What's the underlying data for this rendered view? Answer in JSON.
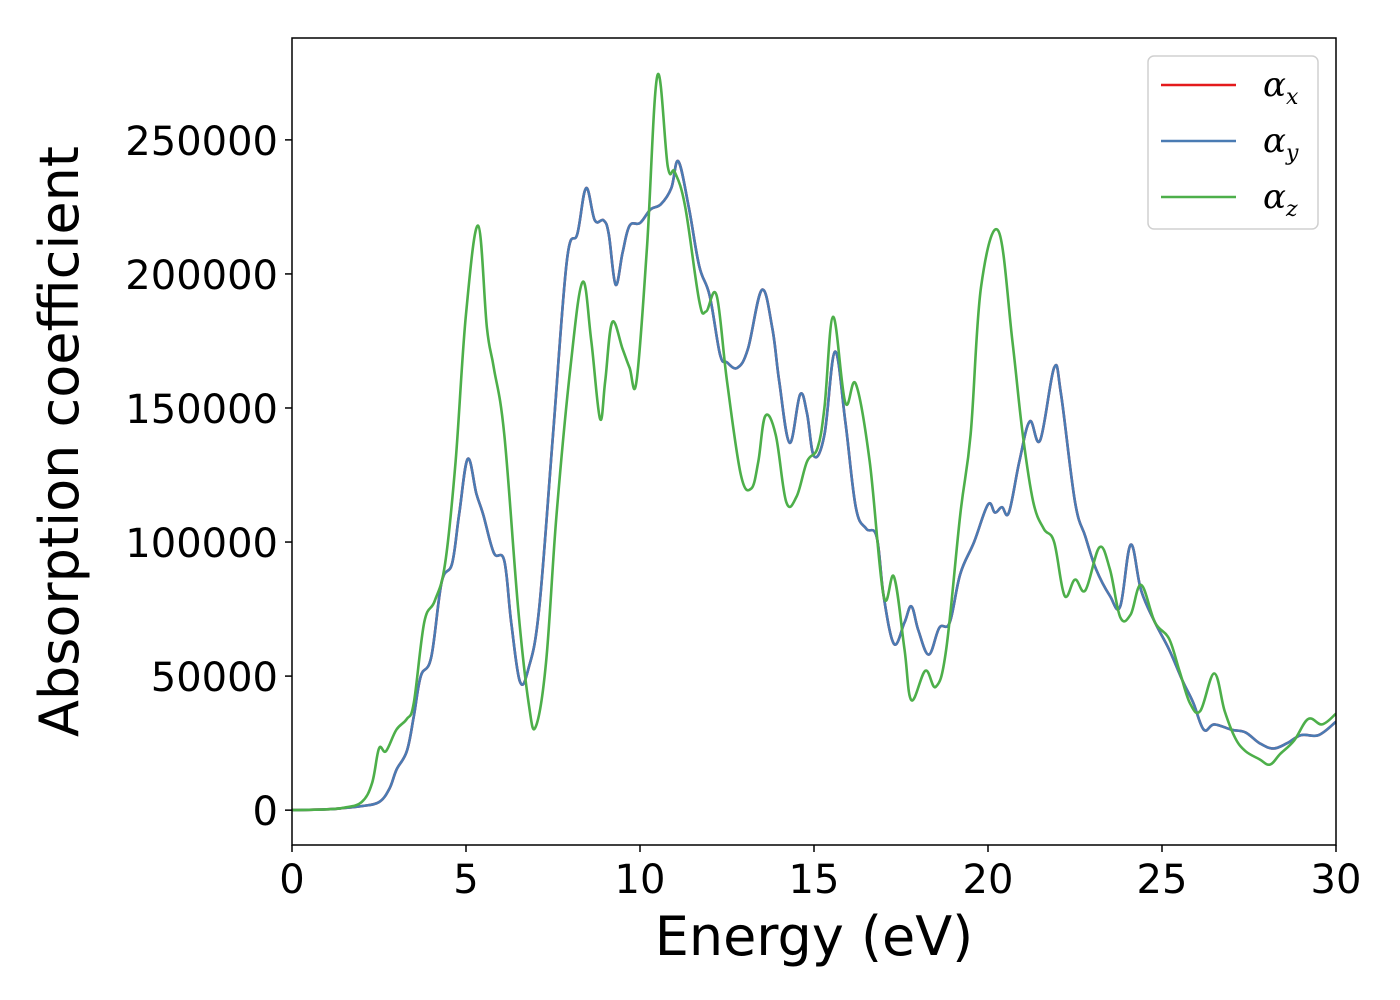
{
  "chart_data": {
    "type": "line",
    "xlabel": "Energy (eV)",
    "ylabel": "Absorption coefficient",
    "xlim": [
      0,
      30
    ],
    "ylim": [
      -13000,
      288000
    ],
    "xticks": [
      0,
      5,
      10,
      15,
      20,
      25,
      30
    ],
    "yticks": [
      0,
      50000,
      100000,
      150000,
      200000,
      250000
    ],
    "grid": false,
    "legend": "top-right",
    "series": [
      {
        "name": "α_x",
        "legend_base": "α",
        "legend_sub": "x",
        "color": "#e41a1c",
        "points": [
          [
            0,
            0
          ],
          [
            1.0,
            300
          ],
          [
            1.5,
            800
          ],
          [
            2.0,
            1500
          ],
          [
            2.5,
            3000
          ],
          [
            2.8,
            8000
          ],
          [
            3.0,
            15000
          ],
          [
            3.3,
            22000
          ],
          [
            3.5,
            35000
          ],
          [
            3.7,
            50000
          ],
          [
            4.0,
            57000
          ],
          [
            4.3,
            85000
          ],
          [
            4.6,
            92000
          ],
          [
            4.8,
            110000
          ],
          [
            5.05,
            131000
          ],
          [
            5.3,
            118000
          ],
          [
            5.5,
            110000
          ],
          [
            5.8,
            96000
          ],
          [
            6.1,
            93000
          ],
          [
            6.3,
            70000
          ],
          [
            6.55,
            48000
          ],
          [
            6.8,
            53000
          ],
          [
            7.1,
            75000
          ],
          [
            7.5,
            140000
          ],
          [
            7.9,
            205000
          ],
          [
            8.2,
            215000
          ],
          [
            8.45,
            232000
          ],
          [
            8.7,
            220000
          ],
          [
            8.95,
            220000
          ],
          [
            9.1,
            215000
          ],
          [
            9.3,
            196000
          ],
          [
            9.5,
            208000
          ],
          [
            9.7,
            218000
          ],
          [
            10.0,
            219000
          ],
          [
            10.3,
            224000
          ],
          [
            10.6,
            226000
          ],
          [
            10.9,
            232000
          ],
          [
            11.1,
            242000
          ],
          [
            11.4,
            225000
          ],
          [
            11.7,
            203000
          ],
          [
            12.0,
            192000
          ],
          [
            12.3,
            170000
          ],
          [
            12.5,
            167000
          ],
          [
            12.8,
            165000
          ],
          [
            13.1,
            172000
          ],
          [
            13.5,
            194000
          ],
          [
            13.8,
            180000
          ],
          [
            14.0,
            160000
          ],
          [
            14.3,
            137000
          ],
          [
            14.6,
            155000
          ],
          [
            14.8,
            148000
          ],
          [
            15.0,
            132000
          ],
          [
            15.3,
            140000
          ],
          [
            15.6,
            171000
          ],
          [
            15.9,
            145000
          ],
          [
            16.2,
            113000
          ],
          [
            16.5,
            105000
          ],
          [
            16.8,
            102000
          ],
          [
            17.0,
            80000
          ],
          [
            17.3,
            62000
          ],
          [
            17.6,
            70000
          ],
          [
            17.8,
            76000
          ],
          [
            18.0,
            67000
          ],
          [
            18.3,
            58000
          ],
          [
            18.6,
            68000
          ],
          [
            18.9,
            70000
          ],
          [
            19.2,
            88000
          ],
          [
            19.6,
            100000
          ],
          [
            20.0,
            114000
          ],
          [
            20.2,
            111000
          ],
          [
            20.4,
            113000
          ],
          [
            20.6,
            111000
          ],
          [
            20.9,
            130000
          ],
          [
            21.2,
            145000
          ],
          [
            21.5,
            138000
          ],
          [
            21.9,
            165000
          ],
          [
            22.1,
            155000
          ],
          [
            22.5,
            115000
          ],
          [
            22.8,
            102000
          ],
          [
            23.1,
            90000
          ],
          [
            23.5,
            80000
          ],
          [
            23.8,
            76000
          ],
          [
            24.1,
            99000
          ],
          [
            24.4,
            82000
          ],
          [
            24.8,
            70000
          ],
          [
            25.2,
            60000
          ],
          [
            25.6,
            48000
          ],
          [
            25.9,
            40000
          ],
          [
            26.2,
            30000
          ],
          [
            26.5,
            32000
          ],
          [
            27.0,
            30000
          ],
          [
            27.4,
            29000
          ],
          [
            27.8,
            25000
          ],
          [
            28.2,
            23000
          ],
          [
            28.6,
            25000
          ],
          [
            29.0,
            28000
          ],
          [
            29.5,
            28000
          ],
          [
            30,
            33000
          ]
        ]
      },
      {
        "name": "α_y",
        "legend_base": "α",
        "legend_sub": "y",
        "color": "#4a7bb3",
        "points": [
          [
            0,
            0
          ],
          [
            1.0,
            300
          ],
          [
            1.5,
            800
          ],
          [
            2.0,
            1500
          ],
          [
            2.5,
            3000
          ],
          [
            2.8,
            8000
          ],
          [
            3.0,
            15000
          ],
          [
            3.3,
            22000
          ],
          [
            3.5,
            35000
          ],
          [
            3.7,
            50000
          ],
          [
            4.0,
            57000
          ],
          [
            4.3,
            85000
          ],
          [
            4.6,
            92000
          ],
          [
            4.8,
            110000
          ],
          [
            5.05,
            131000
          ],
          [
            5.3,
            118000
          ],
          [
            5.5,
            110000
          ],
          [
            5.8,
            96000
          ],
          [
            6.1,
            93000
          ],
          [
            6.3,
            70000
          ],
          [
            6.55,
            48000
          ],
          [
            6.8,
            53000
          ],
          [
            7.1,
            75000
          ],
          [
            7.5,
            140000
          ],
          [
            7.9,
            205000
          ],
          [
            8.2,
            215000
          ],
          [
            8.45,
            232000
          ],
          [
            8.7,
            220000
          ],
          [
            8.95,
            220000
          ],
          [
            9.1,
            215000
          ],
          [
            9.3,
            196000
          ],
          [
            9.5,
            208000
          ],
          [
            9.7,
            218000
          ],
          [
            10.0,
            219000
          ],
          [
            10.3,
            224000
          ],
          [
            10.6,
            226000
          ],
          [
            10.9,
            232000
          ],
          [
            11.1,
            242000
          ],
          [
            11.4,
            225000
          ],
          [
            11.7,
            203000
          ],
          [
            12.0,
            192000
          ],
          [
            12.3,
            170000
          ],
          [
            12.5,
            167000
          ],
          [
            12.8,
            165000
          ],
          [
            13.1,
            172000
          ],
          [
            13.5,
            194000
          ],
          [
            13.8,
            180000
          ],
          [
            14.0,
            160000
          ],
          [
            14.3,
            137000
          ],
          [
            14.6,
            155000
          ],
          [
            14.8,
            148000
          ],
          [
            15.0,
            132000
          ],
          [
            15.3,
            140000
          ],
          [
            15.6,
            171000
          ],
          [
            15.9,
            145000
          ],
          [
            16.2,
            113000
          ],
          [
            16.5,
            105000
          ],
          [
            16.8,
            102000
          ],
          [
            17.0,
            80000
          ],
          [
            17.3,
            62000
          ],
          [
            17.6,
            70000
          ],
          [
            17.8,
            76000
          ],
          [
            18.0,
            67000
          ],
          [
            18.3,
            58000
          ],
          [
            18.6,
            68000
          ],
          [
            18.9,
            70000
          ],
          [
            19.2,
            88000
          ],
          [
            19.6,
            100000
          ],
          [
            20.0,
            114000
          ],
          [
            20.2,
            111000
          ],
          [
            20.4,
            113000
          ],
          [
            20.6,
            111000
          ],
          [
            20.9,
            130000
          ],
          [
            21.2,
            145000
          ],
          [
            21.5,
            138000
          ],
          [
            21.9,
            165000
          ],
          [
            22.1,
            155000
          ],
          [
            22.5,
            115000
          ],
          [
            22.8,
            102000
          ],
          [
            23.1,
            90000
          ],
          [
            23.5,
            80000
          ],
          [
            23.8,
            76000
          ],
          [
            24.1,
            99000
          ],
          [
            24.4,
            82000
          ],
          [
            24.8,
            70000
          ],
          [
            25.2,
            60000
          ],
          [
            25.6,
            48000
          ],
          [
            25.9,
            40000
          ],
          [
            26.2,
            30000
          ],
          [
            26.5,
            32000
          ],
          [
            27.0,
            30000
          ],
          [
            27.4,
            29000
          ],
          [
            27.8,
            25000
          ],
          [
            28.2,
            23000
          ],
          [
            28.6,
            25000
          ],
          [
            29.0,
            28000
          ],
          [
            29.5,
            28000
          ],
          [
            30,
            33000
          ]
        ]
      },
      {
        "name": "α_z",
        "legend_base": "α",
        "legend_sub": "z",
        "color": "#4daf4a",
        "points": [
          [
            0,
            0
          ],
          [
            1.0,
            300
          ],
          [
            1.5,
            900
          ],
          [
            2.0,
            3000
          ],
          [
            2.3,
            10000
          ],
          [
            2.5,
            23000
          ],
          [
            2.7,
            22000
          ],
          [
            3.0,
            30000
          ],
          [
            3.3,
            34000
          ],
          [
            3.5,
            40000
          ],
          [
            3.8,
            70000
          ],
          [
            4.1,
            78000
          ],
          [
            4.4,
            92000
          ],
          [
            4.7,
            130000
          ],
          [
            5.0,
            185000
          ],
          [
            5.35,
            218000
          ],
          [
            5.6,
            180000
          ],
          [
            5.8,
            165000
          ],
          [
            6.1,
            140000
          ],
          [
            6.5,
            75000
          ],
          [
            6.8,
            40000
          ],
          [
            7.0,
            31000
          ],
          [
            7.3,
            55000
          ],
          [
            7.6,
            110000
          ],
          [
            8.0,
            165000
          ],
          [
            8.35,
            197000
          ],
          [
            8.6,
            175000
          ],
          [
            8.85,
            146000
          ],
          [
            9.0,
            160000
          ],
          [
            9.2,
            182000
          ],
          [
            9.5,
            172000
          ],
          [
            9.7,
            165000
          ],
          [
            9.9,
            160000
          ],
          [
            10.2,
            210000
          ],
          [
            10.5,
            274000
          ],
          [
            10.8,
            240000
          ],
          [
            11.0,
            238000
          ],
          [
            11.3,
            225000
          ],
          [
            11.7,
            190000
          ],
          [
            11.9,
            186000
          ],
          [
            12.2,
            192000
          ],
          [
            12.5,
            160000
          ],
          [
            12.9,
            125000
          ],
          [
            13.2,
            120000
          ],
          [
            13.4,
            130000
          ],
          [
            13.6,
            147000
          ],
          [
            13.9,
            140000
          ],
          [
            14.2,
            115000
          ],
          [
            14.5,
            117000
          ],
          [
            14.8,
            130000
          ],
          [
            15.1,
            135000
          ],
          [
            15.3,
            150000
          ],
          [
            15.55,
            184000
          ],
          [
            15.9,
            152000
          ],
          [
            16.2,
            159000
          ],
          [
            16.6,
            130000
          ],
          [
            17.0,
            80000
          ],
          [
            17.3,
            87000
          ],
          [
            17.6,
            60000
          ],
          [
            17.8,
            41000
          ],
          [
            18.2,
            52000
          ],
          [
            18.5,
            46000
          ],
          [
            18.8,
            60000
          ],
          [
            19.2,
            110000
          ],
          [
            19.5,
            140000
          ],
          [
            19.8,
            195000
          ],
          [
            20.3,
            216000
          ],
          [
            20.7,
            175000
          ],
          [
            21.0,
            140000
          ],
          [
            21.3,
            115000
          ],
          [
            21.6,
            105000
          ],
          [
            21.9,
            100000
          ],
          [
            22.2,
            80000
          ],
          [
            22.5,
            86000
          ],
          [
            22.8,
            82000
          ],
          [
            23.2,
            98000
          ],
          [
            23.5,
            90000
          ],
          [
            23.8,
            72000
          ],
          [
            24.1,
            73000
          ],
          [
            24.4,
            84000
          ],
          [
            24.8,
            70000
          ],
          [
            25.2,
            64000
          ],
          [
            25.5,
            52000
          ],
          [
            25.8,
            40000
          ],
          [
            26.1,
            37000
          ],
          [
            26.5,
            51000
          ],
          [
            26.8,
            37000
          ],
          [
            27.1,
            27000
          ],
          [
            27.4,
            22000
          ],
          [
            27.8,
            19000
          ],
          [
            28.1,
            17000
          ],
          [
            28.4,
            21000
          ],
          [
            28.8,
            26000
          ],
          [
            29.2,
            34000
          ],
          [
            29.6,
            32000
          ],
          [
            30,
            36000
          ]
        ]
      }
    ]
  }
}
